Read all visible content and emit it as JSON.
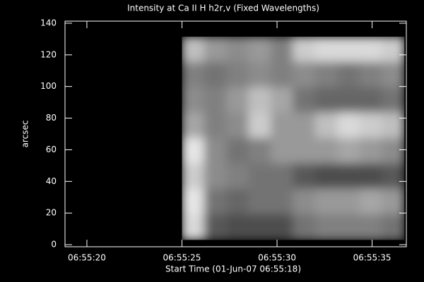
{
  "chart_data": {
    "type": "heatmap",
    "title": "Intensity at Ca II H h2r,v (Fixed Wavelengths)",
    "xlabel": "Start Time (01-Jun-07 06:55:18)",
    "ylabel": "arcsec",
    "xlim": [
      18.85,
      36.8
    ],
    "xticks": [
      {
        "value": 20,
        "label": "06:55:20"
      },
      {
        "value": 25,
        "label": "06:55:25"
      },
      {
        "value": 30,
        "label": "06:55:30"
      },
      {
        "value": 35,
        "label": "06:55:35"
      }
    ],
    "ylim": [
      -1.3,
      141.3
    ],
    "yticks": [
      0,
      20,
      40,
      60,
      80,
      100,
      120,
      140
    ],
    "extent_x": [
      25,
      36.7
    ],
    "extent_y": [
      3,
      131.5
    ],
    "zlim": [
      0,
      1
    ],
    "colormap": "gray",
    "z": [
      [
        0.75,
        0.6,
        0.55,
        0.6,
        0.5,
        0.8,
        0.85,
        0.85,
        0.85,
        0.8
      ],
      [
        0.5,
        0.45,
        0.5,
        0.55,
        0.5,
        0.55,
        0.5,
        0.45,
        0.5,
        0.55
      ],
      [
        0.55,
        0.5,
        0.6,
        0.75,
        0.65,
        0.45,
        0.4,
        0.4,
        0.4,
        0.45
      ],
      [
        0.65,
        0.5,
        0.55,
        0.8,
        0.6,
        0.6,
        0.75,
        0.85,
        0.8,
        0.75
      ],
      [
        0.9,
        0.55,
        0.45,
        0.5,
        0.6,
        0.6,
        0.6,
        0.65,
        0.6,
        0.55
      ],
      [
        0.8,
        0.55,
        0.5,
        0.45,
        0.45,
        0.35,
        0.3,
        0.3,
        0.3,
        0.35
      ],
      [
        0.9,
        0.45,
        0.4,
        0.45,
        0.45,
        0.55,
        0.6,
        0.6,
        0.65,
        0.6
      ],
      [
        0.85,
        0.35,
        0.3,
        0.3,
        0.3,
        0.45,
        0.5,
        0.5,
        0.5,
        0.45
      ]
    ]
  }
}
